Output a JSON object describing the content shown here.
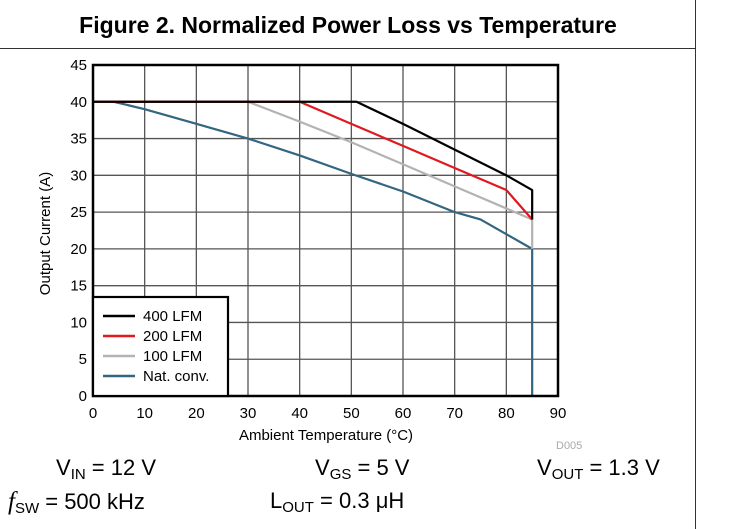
{
  "figure": {
    "title": "Figure 2. Normalized Power Loss vs Temperature",
    "code": "D005"
  },
  "conditions": {
    "vin": {
      "sym": "V",
      "sub": "IN",
      "value": " = 12 V"
    },
    "vgs": {
      "sym": "V",
      "sub": "GS",
      "value": " = 5 V"
    },
    "vout": {
      "sym": "V",
      "sub": "OUT",
      "value": " = 1.3 V"
    },
    "fsw": {
      "sym": "f",
      "sub": "SW",
      "value": " = 500 kHz"
    },
    "lout": {
      "sym": "L",
      "sub": "OUT",
      "value": " = 0.3 μH"
    }
  },
  "chart_data": {
    "type": "line",
    "title": "Figure 2. Normalized Power Loss vs Temperature",
    "xlabel": "Ambient Temperature (°C)",
    "ylabel": "Output Current (A)",
    "xlim": [
      0,
      90
    ],
    "ylim": [
      0,
      45
    ],
    "xticks": [
      0,
      10,
      20,
      30,
      40,
      50,
      60,
      70,
      80,
      90
    ],
    "yticks": [
      0,
      5,
      10,
      15,
      20,
      25,
      30,
      35,
      40,
      45
    ],
    "grid": true,
    "legend_position": "bottom-left",
    "series": [
      {
        "name": "400 LFM",
        "color": "#000000",
        "x": [
          0,
          51,
          60,
          70,
          80,
          85,
          85
        ],
        "y": [
          40,
          40,
          37,
          33.5,
          30,
          28,
          24
        ]
      },
      {
        "name": "200 LFM",
        "color": "#e0191e",
        "x": [
          0,
          40,
          50,
          60,
          70,
          80,
          85
        ],
        "y": [
          40,
          40,
          37,
          34,
          31,
          28,
          24
        ]
      },
      {
        "name": "100 LFM",
        "color": "#b3b3b3",
        "x": [
          0,
          30,
          40,
          50,
          60,
          70,
          80,
          85,
          85
        ],
        "y": [
          40,
          40,
          37.3,
          34.5,
          31.5,
          28.5,
          25.5,
          24,
          20
        ]
      },
      {
        "name": "Nat. conv.",
        "color": "#336680",
        "x": [
          0,
          4,
          10,
          20,
          30,
          40,
          50,
          60,
          70,
          75,
          80,
          85,
          85
        ],
        "y": [
          40,
          40,
          39,
          37,
          35,
          32.7,
          30.2,
          27.8,
          25,
          24,
          22,
          20,
          0
        ]
      }
    ]
  }
}
